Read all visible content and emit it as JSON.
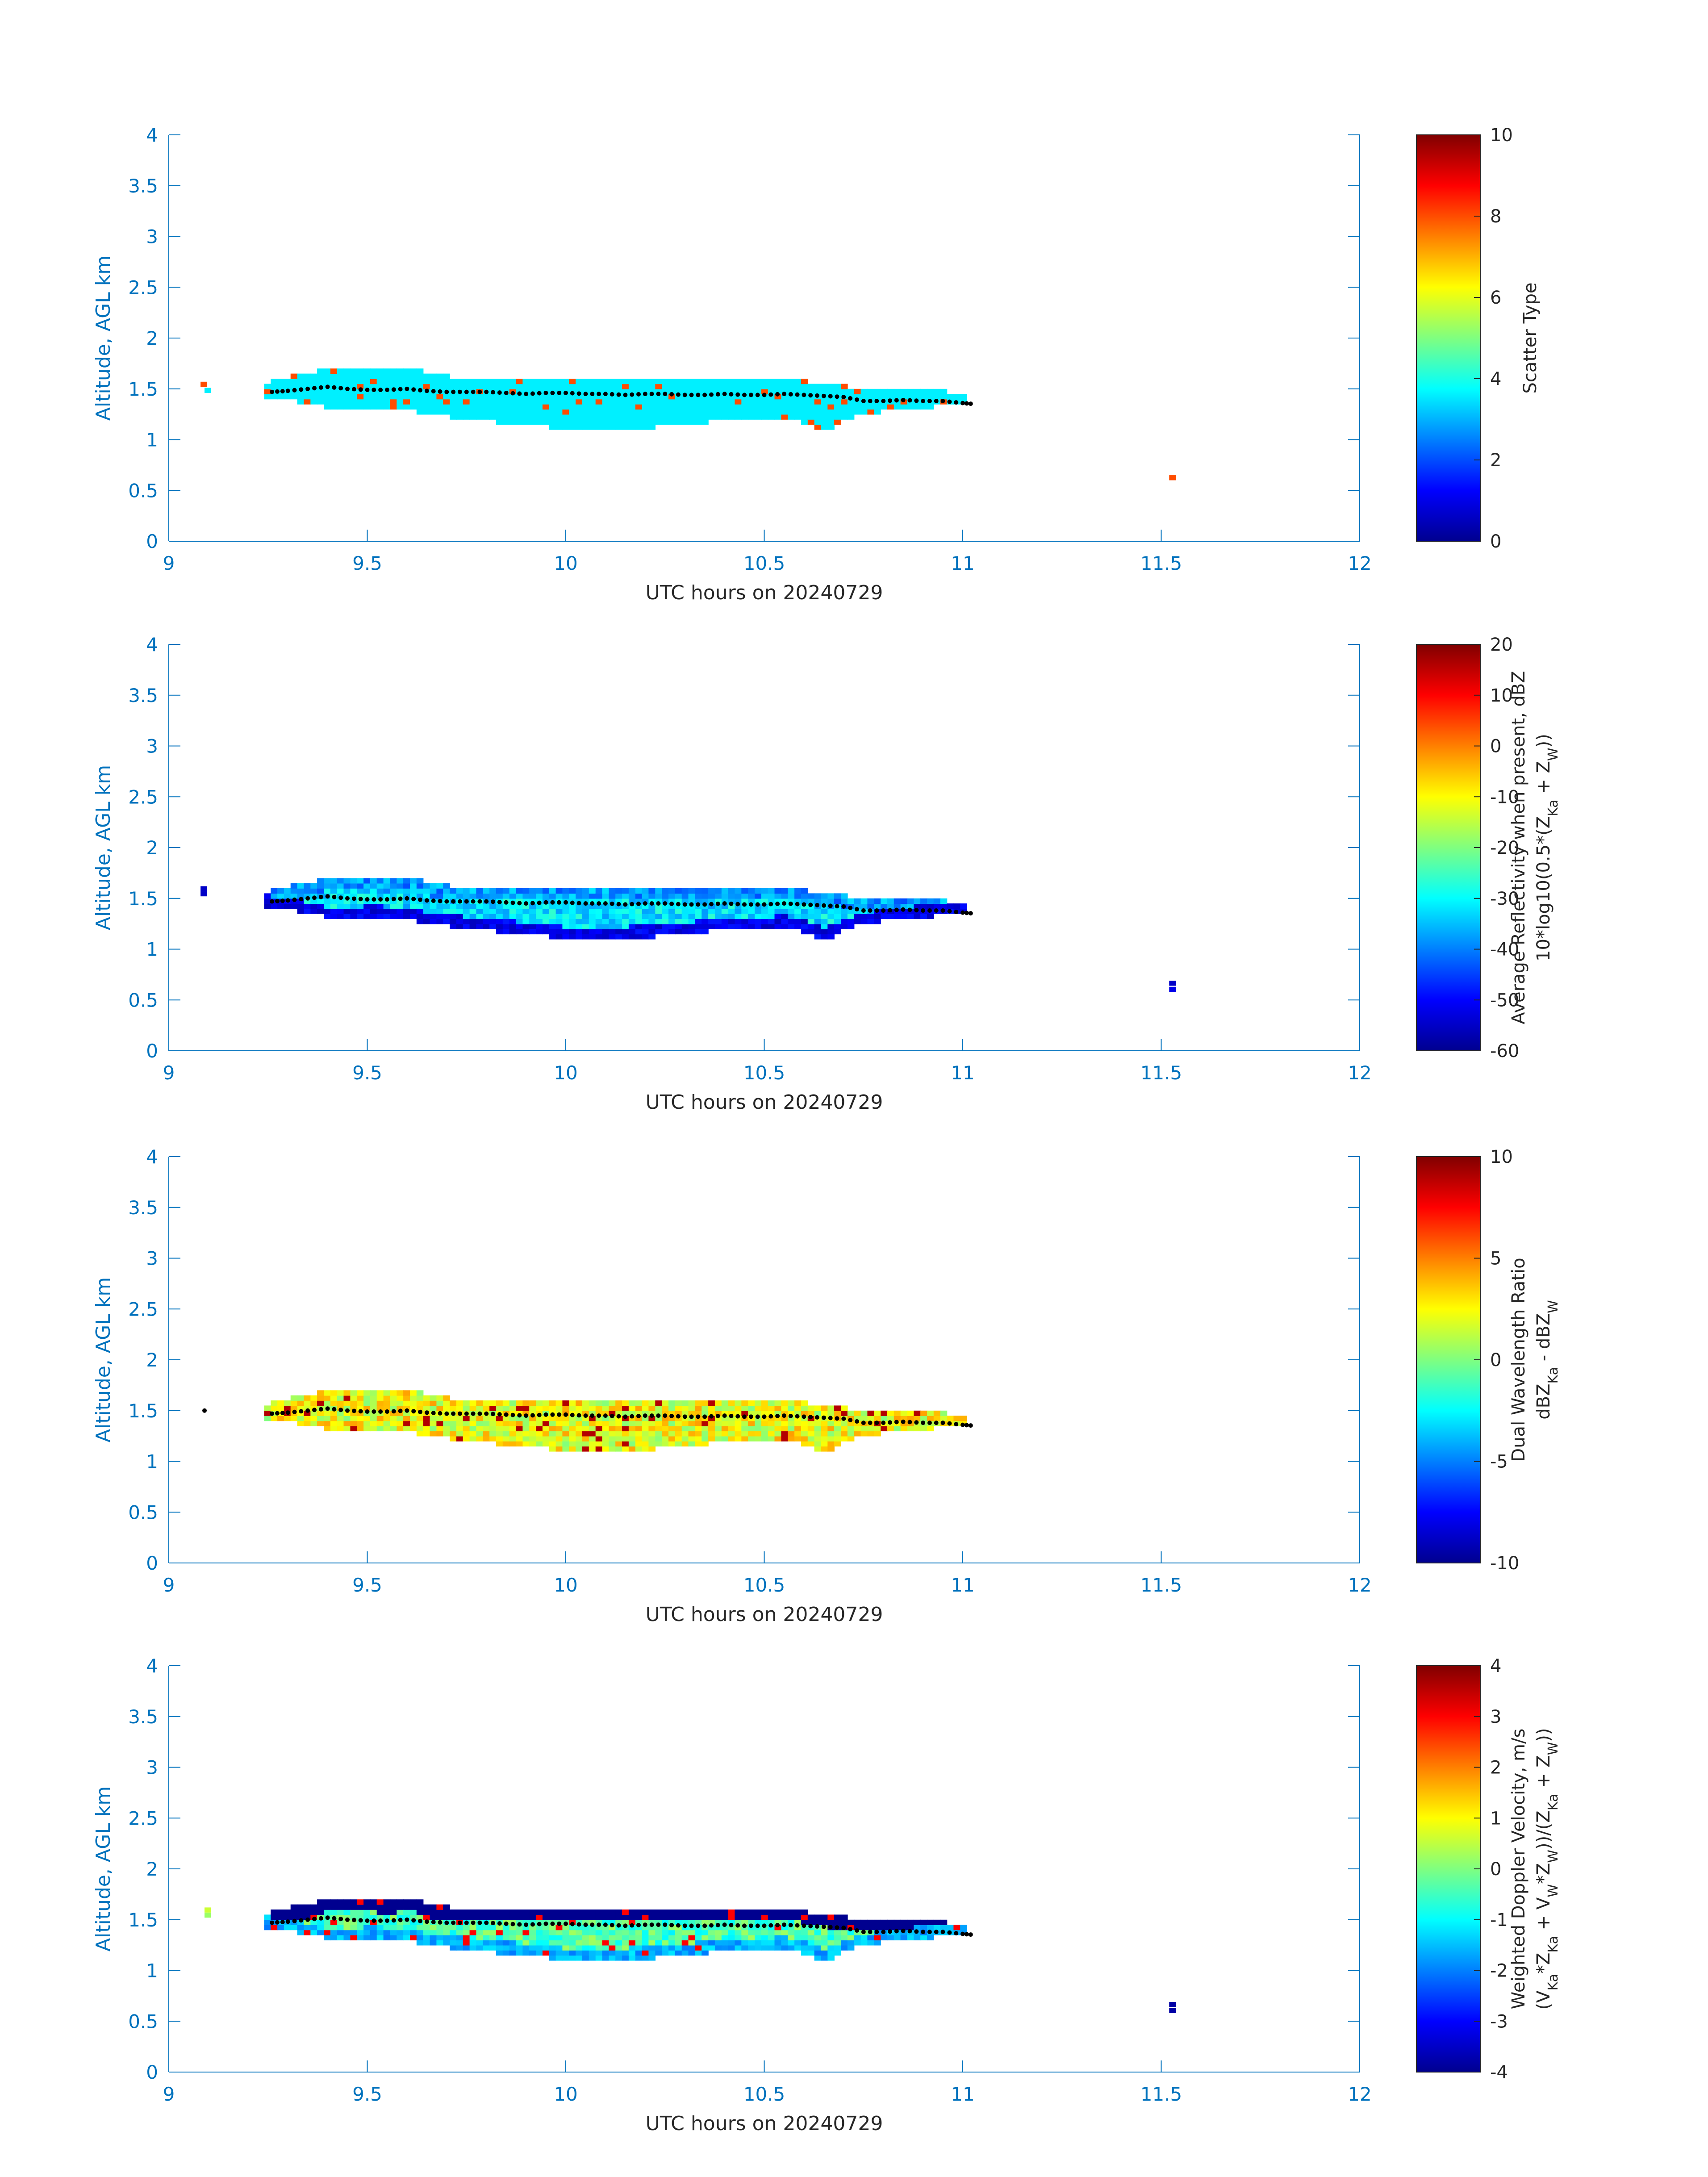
{
  "colors": {
    "axis": "#0072bd",
    "text": "#262626",
    "line": "#000000",
    "jet_stops": [
      "#00008f",
      "#0000ff",
      "#00ffff",
      "#ffff00",
      "#ff0000",
      "#800000"
    ]
  },
  "chart_data": [
    {
      "id": "scatter_type",
      "type": "heatmap",
      "xlabel": "UTC hours on 20240729",
      "ylabel": "Altitude, AGL km",
      "xlim": [
        9,
        12
      ],
      "ylim": [
        0,
        4
      ],
      "xticks": [
        "9",
        "9.5",
        "10",
        "10.5",
        "11",
        "11.5",
        "12"
      ],
      "yticks": [
        "0",
        "0.5",
        "1",
        "1.5",
        "2",
        "2.5",
        "3",
        "3.5",
        "4"
      ],
      "colorbar": {
        "label_lines": [
          "Scatter Type"
        ],
        "clim": [
          0,
          10
        ],
        "ticks": [
          "0",
          "2",
          "4",
          "6",
          "8",
          "10"
        ]
      },
      "field": {
        "base": 3.6,
        "spread": 0.0,
        "speckle_value": 8.0,
        "speckle_rate": 0.05,
        "edge_value": null
      },
      "isolated_cells": [
        {
          "t": 9.08,
          "z": 1.52,
          "v": 8.0
        },
        {
          "t": 9.09,
          "z": 1.46,
          "v": 3.6
        },
        {
          "t": 11.52,
          "z": 0.6,
          "v": 8.0
        }
      ]
    },
    {
      "id": "reflectivity",
      "type": "heatmap",
      "xlabel": "UTC hours on 20240729",
      "ylabel": "Altitude, AGL km",
      "xlim": [
        9,
        12
      ],
      "ylim": [
        0,
        4
      ],
      "xticks": [
        "9",
        "9.5",
        "10",
        "10.5",
        "11",
        "11.5",
        "12"
      ],
      "yticks": [
        "0",
        "0.5",
        "1",
        "1.5",
        "2",
        "2.5",
        "3",
        "3.5",
        "4"
      ],
      "colorbar": {
        "label_lines": [
          "Average Reflectivity when present, dBZ",
          "10*log10(0.5*(Z_Ka + Z_W))"
        ],
        "clim": [
          -60,
          20
        ],
        "ticks": [
          "-60",
          "-50",
          "-40",
          "-30",
          "-20",
          "-10",
          "0",
          "10",
          "20"
        ]
      },
      "field": {
        "base": -32,
        "spread": 6,
        "speckle_value": null,
        "speckle_rate": 0,
        "edge_value": -52
      },
      "isolated_cells": [
        {
          "t": 9.08,
          "z": 1.52,
          "v": -55
        },
        {
          "t": 9.08,
          "z": 1.57,
          "v": -55
        },
        {
          "t": 11.52,
          "z": 0.64,
          "v": -55
        },
        {
          "t": 11.52,
          "z": 0.58,
          "v": -52
        }
      ]
    },
    {
      "id": "dwr",
      "type": "heatmap",
      "xlabel": "UTC hours on 20240729",
      "ylabel": "Altitude, AGL km",
      "xlim": [
        9,
        12
      ],
      "ylim": [
        0,
        4
      ],
      "xticks": [
        "9",
        "9.5",
        "10",
        "10.5",
        "11",
        "11.5",
        "12"
      ],
      "yticks": [
        "0",
        "0.5",
        "1",
        "1.5",
        "2",
        "2.5",
        "3",
        "3.5",
        "4"
      ],
      "colorbar": {
        "label_lines": [
          "Dual Wavelength Ratio",
          "dBZ_Ka - dBZ_W"
        ],
        "clim": [
          -10,
          10
        ],
        "ticks": [
          "-10",
          "-5",
          "0",
          "5",
          "10"
        ]
      },
      "field": {
        "base": 2.2,
        "spread": 2.2,
        "speckle_value": 9.0,
        "speckle_rate": 0.06,
        "edge_value": null
      },
      "isolated_cells": []
    },
    {
      "id": "doppler",
      "type": "heatmap",
      "xlabel": "UTC hours on 20240729",
      "ylabel": "Altitude, AGL km",
      "xlim": [
        9,
        12
      ],
      "ylim": [
        0,
        4
      ],
      "xticks": [
        "9",
        "9.5",
        "10",
        "10.5",
        "11",
        "11.5",
        "12"
      ],
      "yticks": [
        "0",
        "0.5",
        "1",
        "1.5",
        "2",
        "2.5",
        "3",
        "3.5",
        "4"
      ],
      "colorbar": {
        "label_lines": [
          "Weighted Doppler Velocity, m/s",
          "(V_Ka*Z_Ka + V_W*Z_W))/(Z_Ka + Z_W))"
        ],
        "clim": [
          -4,
          4
        ],
        "ticks": [
          "-4",
          "-3",
          "-2",
          "-1",
          "0",
          "1",
          "2",
          "3",
          "4"
        ]
      },
      "field": {
        "base": -0.4,
        "spread": 0.7,
        "speckle_value": 3.0,
        "speckle_rate": 0.04,
        "edge_value": -1.6
      },
      "isolated_cells": [
        {
          "t": 9.09,
          "z": 1.52,
          "v": 0.2
        },
        {
          "t": 9.09,
          "z": 1.57,
          "v": 0.6
        },
        {
          "t": 11.52,
          "z": 0.64,
          "v": -3.8
        },
        {
          "t": 11.52,
          "z": 0.58,
          "v": -3.8
        }
      ]
    }
  ],
  "cloud_layer": {
    "t": [
      9.24,
      9.3,
      9.35,
      9.4,
      9.45,
      9.5,
      9.55,
      9.6,
      9.65,
      9.7,
      9.8,
      9.9,
      10.0,
      10.1,
      10.2,
      10.3,
      10.4,
      10.5,
      10.55,
      10.6,
      10.65,
      10.7,
      10.75,
      10.8,
      10.85,
      10.9,
      10.95,
      11.0
    ],
    "top": [
      1.55,
      1.6,
      1.62,
      1.7,
      1.7,
      1.68,
      1.65,
      1.7,
      1.62,
      1.6,
      1.6,
      1.6,
      1.6,
      1.6,
      1.6,
      1.6,
      1.58,
      1.58,
      1.6,
      1.55,
      1.52,
      1.5,
      1.5,
      1.48,
      1.48,
      1.48,
      1.45,
      1.4
    ],
    "bottom": [
      1.42,
      1.38,
      1.35,
      1.3,
      1.3,
      1.32,
      1.3,
      1.28,
      1.25,
      1.22,
      1.18,
      1.15,
      1.1,
      1.1,
      1.12,
      1.15,
      1.2,
      1.2,
      1.22,
      1.15,
      1.1,
      1.2,
      1.25,
      1.28,
      1.3,
      1.32,
      1.33,
      1.33
    ]
  },
  "ceilometer_dots": {
    "t": [
      9.26,
      9.3,
      9.35,
      9.4,
      9.45,
      9.5,
      9.55,
      9.6,
      9.65,
      9.7,
      9.75,
      9.8,
      9.85,
      9.9,
      9.95,
      10.0,
      10.05,
      10.1,
      10.15,
      10.2,
      10.25,
      10.3,
      10.35,
      10.4,
      10.45,
      10.5,
      10.55,
      10.6,
      10.65,
      10.7,
      10.75,
      10.8,
      10.85,
      10.9,
      10.95,
      11.0,
      11.03
    ],
    "z": [
      1.47,
      1.48,
      1.5,
      1.52,
      1.5,
      1.49,
      1.49,
      1.5,
      1.48,
      1.47,
      1.47,
      1.47,
      1.46,
      1.45,
      1.46,
      1.46,
      1.45,
      1.45,
      1.44,
      1.45,
      1.45,
      1.44,
      1.44,
      1.45,
      1.44,
      1.44,
      1.45,
      1.44,
      1.43,
      1.42,
      1.38,
      1.38,
      1.39,
      1.38,
      1.38,
      1.36,
      1.35
    ],
    "outlier": {
      "t": 9.09,
      "z": 1.5
    }
  }
}
